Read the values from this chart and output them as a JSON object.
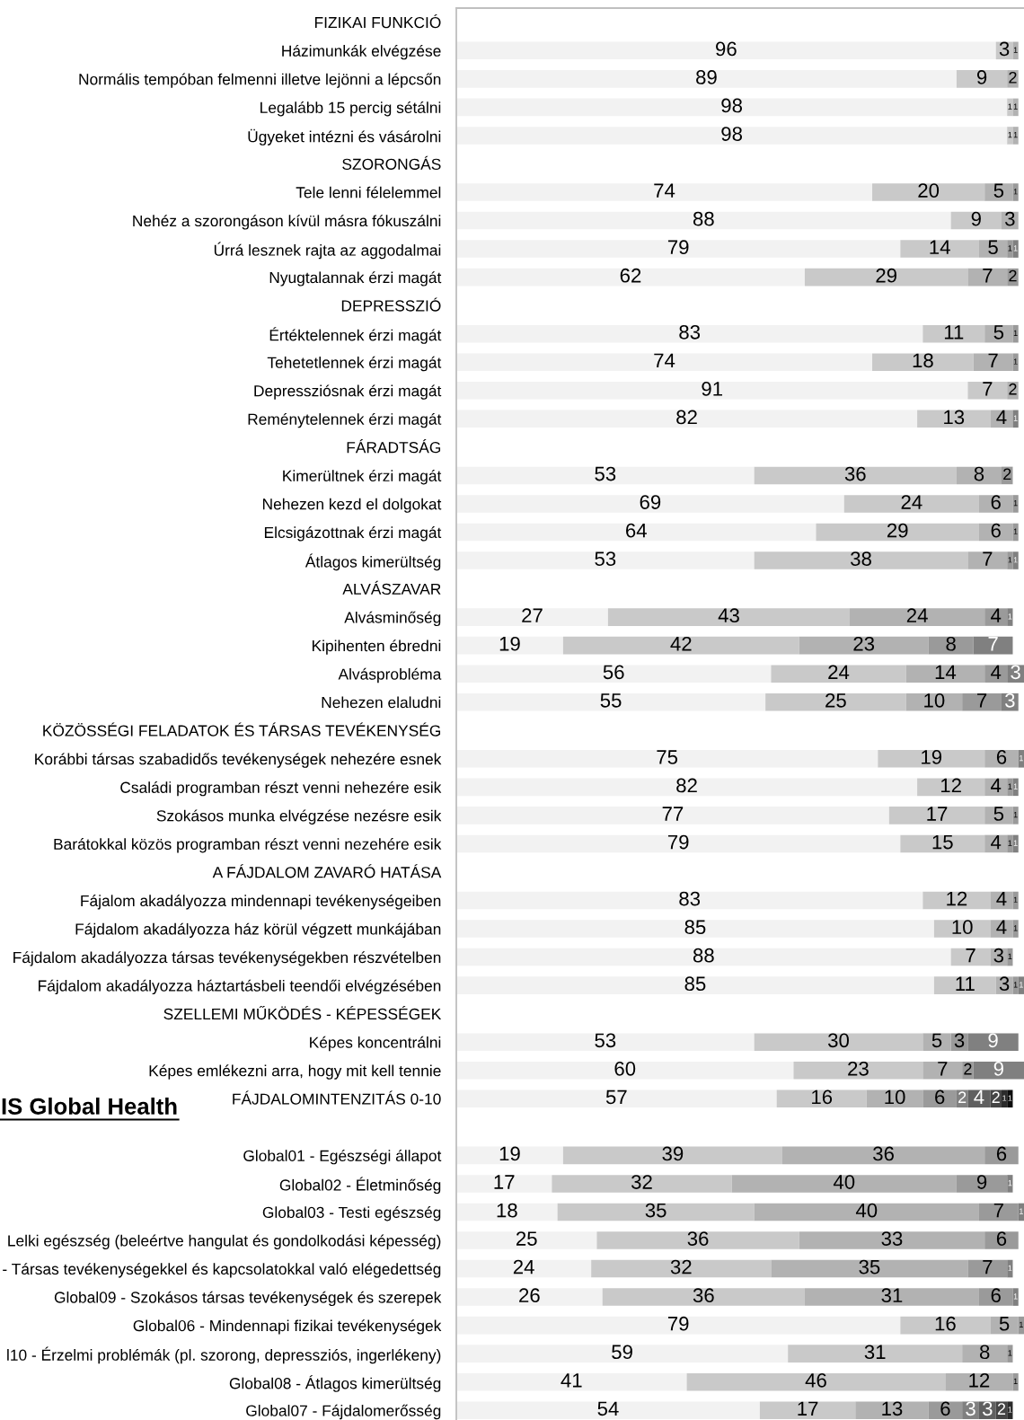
{
  "chart_data": {
    "type": "bar",
    "orientation": "horizontal",
    "stacked": true,
    "data_labels": true,
    "tick_labels": "y",
    "categories": [
      "FIZIKAI FUNKCIÓ",
      "Házimunkák elvégzése",
      "Normális tempóban felmenni illetve lejönni a lépcsőn",
      "Legalább 15 percig sétálni",
      "Ügyeket intézni és vásárolni",
      "SZORONGÁS",
      "Tele lenni félelemmel",
      "Nehéz a szorongáson kívül másra fókuszálni",
      "Úrrá lesznek rajta az aggodalmai",
      "Nyugtalannak érzi magát",
      "DEPRESSZIÓ",
      "Értéktelennek érzi magát",
      "Tehetetlennek érzi magát",
      "Depressziósnak érzi magát",
      "Reménytelennek érzi magát",
      "FÁRADTSÁG",
      "Kimerültnek érzi magát",
      "Nehezen kezd el dolgokat",
      "Elcsigázottnak érzi magát",
      "Átlagos kimerültség",
      "ALVÁSZAVAR",
      "Alvásminőség",
      "Kipihenten ébredni",
      "Alvásprobléma",
      "Nehezen elaludni",
      "KÖZÖSSÉGI FELADATOK ÉS TÁRSAS TEVÉKENYSÉG",
      "Korábbi társas szabadidős tevékenységek nehezére esnek",
      "Családi programban részt venni nehezére esik",
      "Szokásos munka elvégzése nezésre esik",
      "Barátokkal közös programban részt venni nezehére esik",
      "A FÁJDALOM ZAVARÓ HATÁSA",
      "Fájalom akadályozza mindennapi tevékenységeiben",
      "Fájdalom akadályozza ház körül végzett munkájában",
      "Fájdalom akadályozza társas tevékenységekben részvételben",
      "Fájdalom akadályozza háztartásbeli teendői elvégzésében",
      "SZELLEMI MŰKÖDÉS - KÉPESSÉGEK",
      "Képes koncentrálni",
      "Képes emlékezni arra, hogy mit kell tennie",
      "FÁJDALOMINTENZITÁS 0-10",
      null,
      "Global01 - Egészségi állapot",
      "Global02 - Életminőség",
      "Global03 - Testi egészség",
      "Lelki egészség (beleértve hangulat és gondolkodási képesség)",
      "- Társas tevékenységekkel és kapcsolatokkal való elégedettség",
      "Global09 - Szokásos társas tevékenységek és szerepek",
      "Global06 - Mindennapi fizikai tevékenységek",
      "l10 - Érzelmi problémák (pl. szorong, depressziós, ingerlékeny)",
      "Global08 - Átlagos kimerültség",
      "Global07 - Fájdalomerősség"
    ],
    "series": [
      {
        "color": "#f2f2f2",
        "values": [
          null,
          96,
          89,
          98,
          98,
          null,
          74,
          88,
          79,
          62,
          null,
          83,
          74,
          91,
          82,
          null,
          53,
          69,
          64,
          53,
          null,
          27,
          19,
          56,
          55,
          null,
          75,
          82,
          77,
          79,
          null,
          83,
          85,
          88,
          85,
          null,
          53,
          60,
          57,
          null,
          19,
          17,
          18,
          25,
          24,
          26,
          79,
          59,
          41,
          54
        ]
      },
      {
        "color": "#c9c9c9",
        "values": [
          null,
          3,
          9,
          1,
          1,
          null,
          20,
          9,
          14,
          29,
          null,
          11,
          18,
          7,
          13,
          null,
          36,
          24,
          29,
          38,
          null,
          43,
          42,
          24,
          25,
          null,
          19,
          12,
          17,
          15,
          null,
          12,
          10,
          7,
          11,
          null,
          30,
          23,
          16,
          null,
          39,
          32,
          35,
          36,
          32,
          36,
          16,
          31,
          46,
          17
        ]
      },
      {
        "color": "#b2b2b2",
        "values": [
          null,
          1,
          2,
          1,
          1,
          null,
          5,
          3,
          5,
          7,
          null,
          5,
          7,
          2,
          4,
          null,
          8,
          6,
          6,
          7,
          null,
          24,
          23,
          14,
          10,
          null,
          6,
          4,
          5,
          4,
          null,
          4,
          4,
          3,
          3,
          null,
          5,
          7,
          10,
          null,
          36,
          40,
          40,
          33,
          35,
          31,
          5,
          8,
          12,
          13
        ]
      },
      {
        "color": "#9a9a9a",
        "values": [
          null,
          null,
          null,
          null,
          null,
          null,
          1,
          null,
          1,
          2,
          null,
          1,
          1,
          null,
          null,
          null,
          2,
          1,
          1,
          1,
          null,
          4,
          8,
          4,
          7,
          null,
          null,
          1,
          1,
          1,
          null,
          1,
          1,
          1,
          1,
          null,
          3,
          2,
          6,
          null,
          6,
          9,
          7,
          6,
          7,
          6,
          1,
          1,
          1,
          6
        ]
      },
      {
        "color": "#808080",
        "values": [
          null,
          null,
          null,
          null,
          null,
          null,
          null,
          null,
          1,
          null,
          null,
          null,
          null,
          null,
          1,
          null,
          null,
          null,
          null,
          1,
          null,
          1,
          7,
          3,
          3,
          null,
          1,
          1,
          null,
          1,
          null,
          null,
          null,
          null,
          1,
          null,
          9,
          9,
          2,
          null,
          null,
          1,
          1,
          null,
          1,
          1,
          null,
          null,
          null,
          3
        ]
      },
      {
        "color": "#606060",
        "values": [
          null,
          null,
          null,
          null,
          null,
          null,
          null,
          null,
          null,
          null,
          null,
          null,
          null,
          null,
          null,
          null,
          null,
          null,
          null,
          null,
          null,
          null,
          null,
          null,
          null,
          null,
          null,
          null,
          null,
          null,
          null,
          null,
          null,
          null,
          null,
          null,
          null,
          null,
          4,
          null,
          null,
          null,
          null,
          null,
          null,
          null,
          null,
          null,
          null,
          3
        ]
      },
      {
        "color": "#454545",
        "values": [
          null,
          null,
          null,
          null,
          null,
          null,
          null,
          null,
          null,
          null,
          null,
          null,
          null,
          null,
          null,
          null,
          null,
          null,
          null,
          null,
          null,
          null,
          null,
          null,
          null,
          null,
          null,
          null,
          null,
          null,
          null,
          null,
          null,
          null,
          null,
          null,
          null,
          null,
          2,
          null,
          null,
          null,
          null,
          null,
          null,
          null,
          null,
          null,
          null,
          2
        ]
      },
      {
        "color": "#2b2b2b",
        "values": [
          null,
          null,
          null,
          null,
          null,
          null,
          null,
          null,
          null,
          null,
          null,
          null,
          null,
          null,
          null,
          null,
          null,
          null,
          null,
          null,
          null,
          null,
          null,
          null,
          null,
          null,
          null,
          null,
          null,
          null,
          null,
          null,
          null,
          null,
          null,
          null,
          null,
          null,
          1,
          null,
          null,
          null,
          null,
          null,
          null,
          null,
          null,
          null,
          null,
          1
        ]
      },
      {
        "color": "#0d0d0d",
        "values": [
          null,
          null,
          null,
          null,
          null,
          null,
          null,
          null,
          null,
          null,
          null,
          null,
          null,
          null,
          null,
          null,
          null,
          null,
          null,
          null,
          null,
          null,
          null,
          null,
          null,
          null,
          null,
          null,
          null,
          null,
          null,
          null,
          null,
          null,
          null,
          null,
          null,
          null,
          1,
          null,
          null,
          null,
          null,
          null,
          null,
          null,
          null,
          null,
          null,
          null
        ]
      }
    ],
    "annotations": [
      "IS Global Health"
    ]
  }
}
